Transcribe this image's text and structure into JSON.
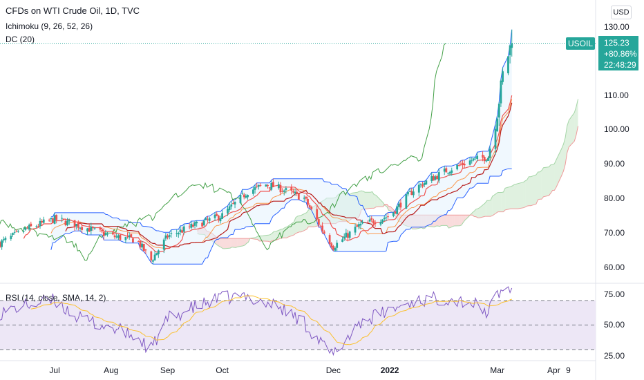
{
  "header": {
    "title": "CFDs on WTI Crude Oil, 1D, TVC",
    "indicator_ichimoku": "Ichimoku (9, 26, 52, 26)",
    "indicator_dc": "DC (20)",
    "rsi_label": "RSI (14, close, SMA, 14, 2)",
    "currency_button": "USD"
  },
  "price_tag": {
    "symbol": "USOIL",
    "price": "125.23",
    "change": "+80.86%",
    "time": "22:48:29"
  },
  "colors": {
    "up": "#26a69a",
    "down": "#ef5350",
    "donchian": "#2962ff",
    "donchian_fill": "#e3f2fd",
    "tenkan": "#ef5350",
    "kijun": "#b71c1c",
    "chikou": "#43a047",
    "cloud_bull": "#a5d6a7",
    "cloud_bear": "#ef9a9a",
    "rsi": "#7e57c2",
    "rsi_ma": "#fbc02d",
    "rsi_band": "#ede7f6"
  },
  "chart_data": [
    {
      "type": "candlestick",
      "title": "CFDs on WTI Crude Oil, 1D, TVC",
      "ylim": [
        57,
        133
      ],
      "y_ticks": [
        "130.00",
        "110.00",
        "100.00",
        "90.00",
        "80.00",
        "70.00",
        "60.00"
      ],
      "x_ticks": [
        "Jul",
        "Aug",
        "Sep",
        "Oct",
        "Dec",
        "2022",
        "Mar",
        "Apr",
        "9"
      ],
      "last_price": 125.23,
      "close_series": {
        "dates": [
          "2021-06-01",
          "2021-06-15",
          "2021-07-01",
          "2021-07-15",
          "2021-08-01",
          "2021-08-15",
          "2021-08-23",
          "2021-09-01",
          "2021-09-15",
          "2021-10-01",
          "2021-10-15",
          "2021-10-25",
          "2021-11-01",
          "2021-11-15",
          "2021-11-26",
          "2021-12-01",
          "2021-12-15",
          "2022-01-01",
          "2022-01-15",
          "2022-02-01",
          "2022-02-15",
          "2022-02-24",
          "2022-03-01",
          "2022-03-04",
          "2022-03-08",
          "2022-03-09"
        ],
        "values": [
          67,
          71,
          74,
          72,
          69,
          68,
          62,
          69,
          72,
          75,
          82,
          84,
          83,
          80,
          70,
          66,
          72,
          75,
          83,
          88,
          91,
          92,
          105,
          116,
          124,
          125.2
        ]
      },
      "series": [
        {
          "name": "Ichimoku (9, 26, 52, 26)"
        },
        {
          "name": "DC (20)"
        }
      ]
    },
    {
      "type": "line",
      "title": "RSI (14, close, SMA, 14, 2)",
      "ylim": [
        22,
        83
      ],
      "y_ticks": [
        "75.00",
        "50.00",
        "25.00"
      ],
      "bands": [
        30,
        50,
        70
      ],
      "series": [
        {
          "name": "RSI",
          "dates": [
            "2021-06-01",
            "2021-06-15",
            "2021-07-01",
            "2021-07-15",
            "2021-08-01",
            "2021-08-15",
            "2021-08-23",
            "2021-09-01",
            "2021-09-15",
            "2021-10-01",
            "2021-10-15",
            "2021-10-25",
            "2021-11-01",
            "2021-11-15",
            "2021-11-26",
            "2021-12-01",
            "2021-12-15",
            "2022-01-01",
            "2022-01-15",
            "2022-02-01",
            "2022-02-15",
            "2022-02-24",
            "2022-03-01",
            "2022-03-04",
            "2022-03-08",
            "2022-03-09"
          ],
          "values": [
            60,
            66,
            70,
            55,
            48,
            40,
            30,
            55,
            64,
            72,
            73,
            68,
            65,
            52,
            32,
            25,
            52,
            62,
            70,
            72,
            68,
            60,
            75,
            78,
            80,
            80
          ]
        }
      ]
    }
  ]
}
